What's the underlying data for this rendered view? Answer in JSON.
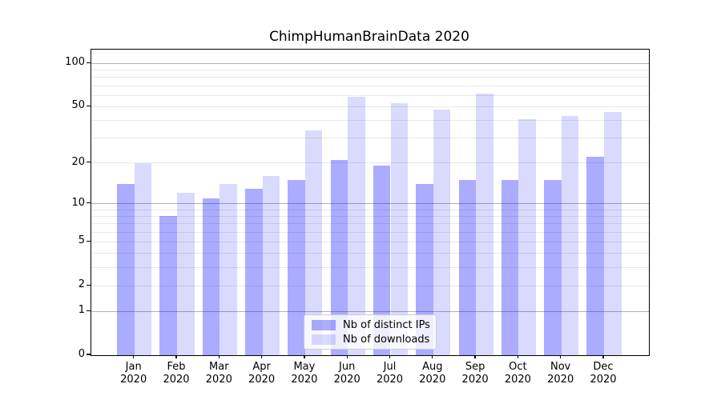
{
  "chart_data": {
    "type": "bar",
    "title": "ChimpHumanBrainData 2020",
    "categories": [
      "Jan",
      "Feb",
      "Mar",
      "Apr",
      "May",
      "Jun",
      "Jul",
      "Aug",
      "Sep",
      "Oct",
      "Nov",
      "Dec"
    ],
    "year_label": "2020",
    "series": [
      {
        "name": "Nb of distinct IPs",
        "color": "#0000FF54",
        "values": [
          14,
          8,
          11,
          13,
          15,
          21,
          19,
          14,
          15,
          15,
          15,
          22
        ]
      },
      {
        "name": "Nb of downloads",
        "color": "#0000FF25",
        "values": [
          20,
          12,
          14,
          16,
          34,
          59,
          53,
          48,
          62,
          41,
          43,
          46
        ]
      }
    ],
    "yscale": "log1p",
    "ylim": [
      0,
      125
    ],
    "yticks": [
      0,
      1,
      2,
      5,
      10,
      20,
      50,
      100
    ],
    "major_gridlines": [
      1,
      10,
      100
    ],
    "minor_gridlines": [
      2,
      3,
      4,
      5,
      6,
      7,
      8,
      9,
      20,
      30,
      40,
      50,
      60,
      70,
      80,
      90
    ],
    "grid_major_color": "#b1b1b1",
    "grid_minor_color": "#e8e8e8",
    "legend": {
      "position": "lower center"
    },
    "xlabel": "",
    "ylabel": ""
  }
}
